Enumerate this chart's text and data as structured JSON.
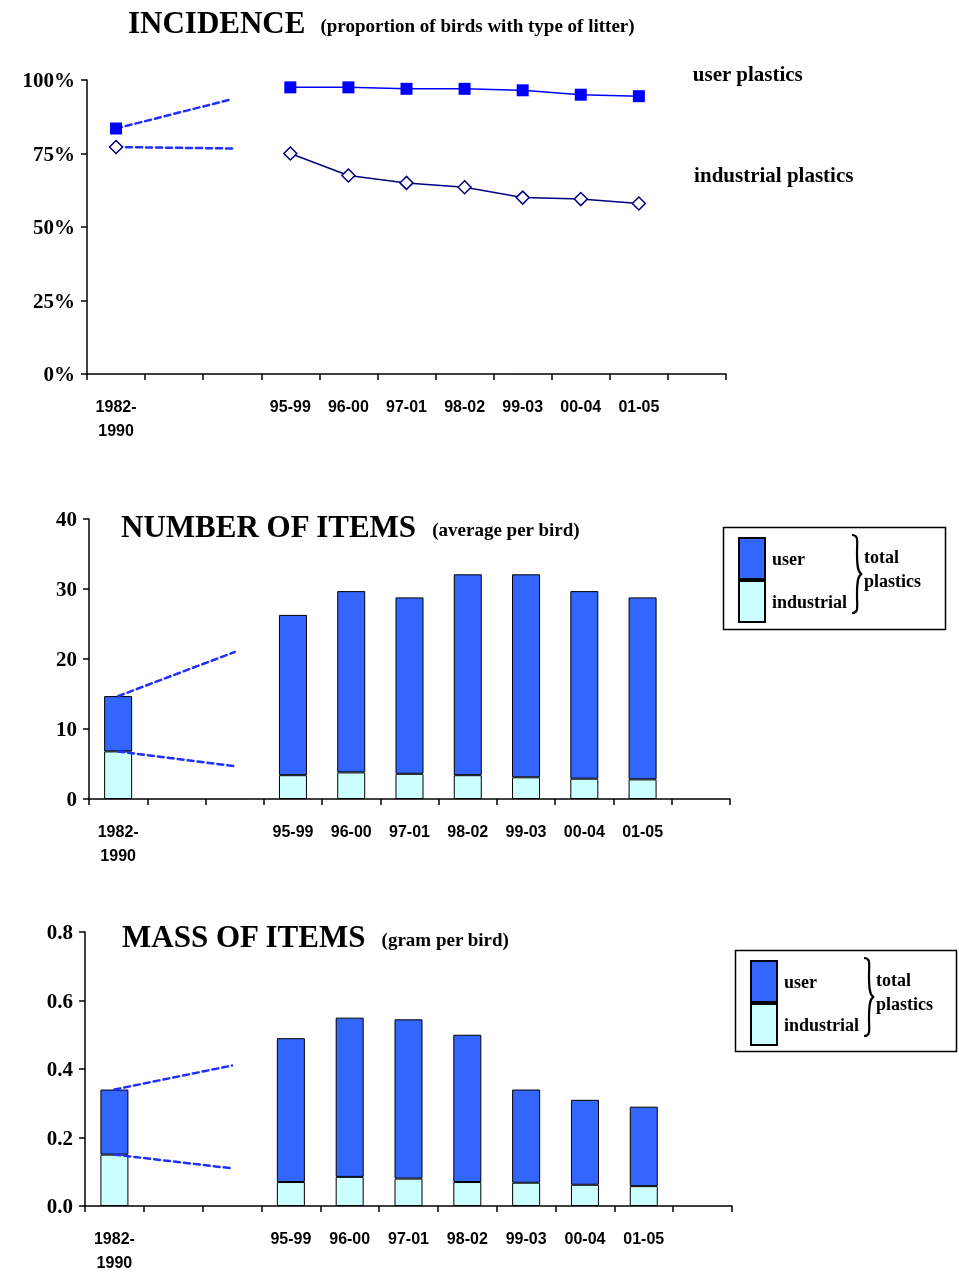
{
  "chart_data": [
    {
      "type": "line",
      "title": "INCIDENCE",
      "subtitle": "(proportion of birds with type of litter)",
      "categories": [
        "1982-\n1990",
        null,
        null,
        "95-99",
        "96-00",
        "97-01",
        "98-02",
        "99-03",
        "00-04",
        "01-05",
        null
      ],
      "series": [
        {
          "name": "user plastics",
          "color": "#0000ff",
          "marker": "square",
          "line_style": "solid",
          "values": [
            83.5,
            null,
            null,
            97.5,
            97.5,
            97,
            97,
            96.5,
            95,
            94.5,
            null
          ]
        },
        {
          "name": "industrial plastics",
          "color": "#000080",
          "marker": "diamond",
          "line_style": "solid",
          "values": [
            77.2,
            null,
            null,
            75,
            67.5,
            65,
            63.5,
            60,
            59.5,
            58,
            null
          ]
        },
        {
          "color": "#1f2fff",
          "marker": "none",
          "line_style": "dashed",
          "values": [
            83.5,
            null,
            93.5,
            null,
            null,
            null,
            null,
            null,
            null,
            null,
            null
          ]
        },
        {
          "color": "#1f2fff",
          "marker": "none",
          "line_style": "dashed",
          "values": [
            77.2,
            null,
            76.7,
            null,
            null,
            null,
            null,
            null,
            null,
            null,
            null
          ]
        }
      ],
      "ylim": [
        0,
        100
      ],
      "yticks": [
        {
          "value": 0,
          "label": "0%"
        },
        {
          "value": 25,
          "label": "25%"
        },
        {
          "value": 50,
          "label": "50%"
        },
        {
          "value": 75,
          "label": "75%"
        },
        {
          "value": 100,
          "label": "100%"
        }
      ],
      "grid": false,
      "legend": false
    },
    {
      "type": "bar",
      "title": "NUMBER OF ITEMS",
      "subtitle": "(average per bird)",
      "legend_title": "total plastics",
      "categories": [
        "1982-\n1990",
        null,
        null,
        "95-99",
        "96-00",
        "97-01",
        "98-02",
        "99-03",
        "00-04",
        "01-05",
        null
      ],
      "stacked": true,
      "series": [
        {
          "name": "industrial",
          "color": "#ccffff",
          "values": [
            6.8,
            null,
            null,
            3.4,
            3.8,
            3.6,
            3.4,
            3.1,
            2.9,
            2.8,
            null
          ]
        },
        {
          "name": "user",
          "color": "#3366ff",
          "values": [
            7.9,
            null,
            null,
            22.9,
            25.9,
            25.2,
            28.7,
            29.0,
            26.8,
            26.0,
            null
          ]
        },
        {
          "type": "line",
          "color": "#1f2fff",
          "marker": "none",
          "line_style": "dashed",
          "values": [
            14.7,
            null,
            21,
            null,
            null,
            null,
            null,
            null,
            null,
            null,
            null
          ]
        },
        {
          "type": "line",
          "color": "#1f2fff",
          "marker": "none",
          "line_style": "dashed",
          "values": [
            6.8,
            null,
            4.7,
            null,
            null,
            null,
            null,
            null,
            null,
            null,
            null
          ]
        }
      ],
      "ylim": [
        0,
        40
      ],
      "yticks": [
        0,
        10,
        20,
        30,
        40
      ],
      "grid": false,
      "legend": "right"
    },
    {
      "type": "bar",
      "title": "MASS OF ITEMS",
      "subtitle": "(gram per bird)",
      "legend_title": "total plastics",
      "categories": [
        "1982-\n1990",
        null,
        null,
        "95-99",
        "96-00",
        "97-01",
        "98-02",
        "99-03",
        "00-04",
        "01-05",
        null
      ],
      "stacked": true,
      "series": [
        {
          "name": "industrial",
          "color": "#ccffff",
          "values": [
            0.15,
            null,
            null,
            0.07,
            0.085,
            0.08,
            0.07,
            0.068,
            0.062,
            0.058,
            null
          ]
        },
        {
          "name": "user",
          "color": "#3366ff",
          "values": [
            0.19,
            null,
            null,
            0.42,
            0.465,
            0.465,
            0.43,
            0.272,
            0.248,
            0.232,
            null
          ]
        },
        {
          "type": "line",
          "color": "#1f2fff",
          "marker": "none",
          "line_style": "dashed",
          "values": [
            0.34,
            null,
            0.41,
            null,
            null,
            null,
            null,
            null,
            null,
            null,
            null
          ]
        },
        {
          "type": "line",
          "color": "#1f2fff",
          "marker": "none",
          "line_style": "dashed",
          "values": [
            0.15,
            null,
            0.11,
            null,
            null,
            null,
            null,
            null,
            null,
            null,
            null
          ]
        }
      ],
      "ylim": [
        0,
        0.8
      ],
      "yticks": [
        {
          "value": 0,
          "label": "0.0"
        },
        0.2,
        0.4,
        0.6,
        0.8
      ],
      "grid": false,
      "legend": "right"
    }
  ]
}
